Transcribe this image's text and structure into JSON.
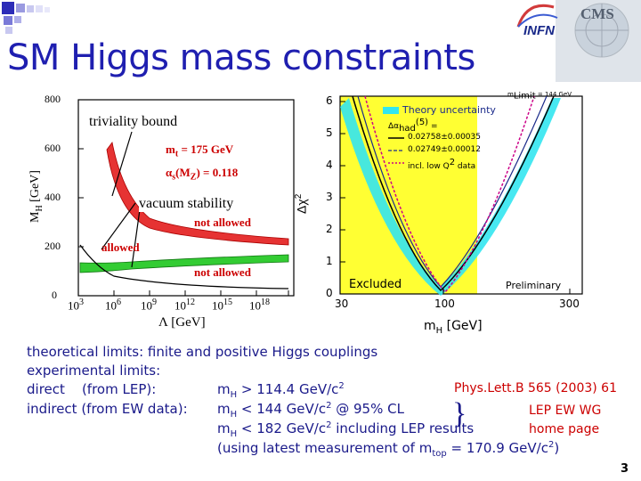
{
  "slide": {
    "title": "SM Higgs mass constraints",
    "page_number": "3"
  },
  "logos": {
    "infn": "INFN",
    "cms": "CMS"
  },
  "left_plot": {
    "ylabel": "M",
    "ylabel_sub": "H",
    "ylabel_unit": "[GeV]",
    "xlabel": "Λ",
    "xlabel_unit": "[GeV]",
    "y_ticks": [
      "0",
      "200",
      "400",
      "600",
      "800"
    ],
    "x_ticks": [
      {
        "base": "10",
        "exp": "3"
      },
      {
        "base": "10",
        "exp": "6"
      },
      {
        "base": "10",
        "exp": "9"
      },
      {
        "base": "10",
        "exp": "12"
      },
      {
        "base": "10",
        "exp": "15"
      },
      {
        "base": "10",
        "exp": "18"
      }
    ],
    "mt_text": "m",
    "mt_sub": "t",
    "mt_value": " = 175 GeV",
    "alpha_text": "α",
    "alpha_sub": "s",
    "alpha_mid": "(M",
    "alpha_sub2": "Z",
    "alpha_value": ") = 0.118",
    "triviality_label": "triviality bound",
    "vacuum_label": "vacuum stability",
    "not_allowed_top": "not allowed",
    "allowed": "allowed",
    "not_allowed_bottom": "not allowed"
  },
  "right_plot": {
    "ylabel": "Δχ",
    "ylabel_sup": "2",
    "xlabel": "m",
    "xlabel_sub": "H",
    "xlabel_unit": "[GeV]",
    "y_ticks": [
      "0",
      "1",
      "2",
      "3",
      "4",
      "5",
      "6"
    ],
    "x_ticks": [
      "30",
      "100",
      "300"
    ],
    "top_label": "m",
    "top_label_sub": "Limit",
    "top_label_value": " = 144 GeV",
    "legend_theory": "Theory uncertainty",
    "legend_delta": "Δα",
    "legend_delta_sub": "had",
    "legend_delta_sup": "(5)",
    "legend_delta_eq": " =",
    "legend_1": "0.02758±0.00035",
    "legend_2": "0.02749±0.00012",
    "legend_3": "incl. low Q",
    "legend_3_sup": "2",
    "legend_3_end": " data",
    "excluded": "Excluded",
    "preliminary": "Preliminary"
  },
  "text": {
    "line1": "theoretical limits: finite and positive Higgs couplings",
    "line2": "experimental limits:",
    "line3_a": "direct    (from LEP):",
    "line3_b": "m",
    "line3_b_sub": "H",
    "line3_b_rest": " > 114.4 GeV/c",
    "line3_b_sup": "2",
    "ref1": "Phys.Lett.B 565 (2003) 61",
    "line4_a": "indirect (from EW data):",
    "line4_b": "m",
    "line4_b_sub": "H",
    "line4_b_rest": " < 144 GeV/c",
    "line4_b_sup": "2",
    "line4_b_end": " @ 95% CL",
    "ref2": "LEP EW WG",
    "line5_b": "m",
    "line5_b_sub": "H",
    "line5_b_rest": " < 182 GeV/c",
    "line5_b_sup": "2",
    "line5_b_end": " including LEP results",
    "brace": "}",
    "ref3": "home page",
    "line6": "(using latest measurement of m",
    "line6_sub": "top",
    "line6_rest": " = 170.9 GeV/c",
    "line6_sup": "2",
    "line6_end": ")"
  },
  "colors": {
    "title": "#1f1fb0",
    "body": "#1a1a8a",
    "ref": "#cc0000",
    "excluded_band": "#ffff33",
    "theory_band": "#33e6f0",
    "triviality_band": "#e63333",
    "stability_band": "#33cc33"
  }
}
